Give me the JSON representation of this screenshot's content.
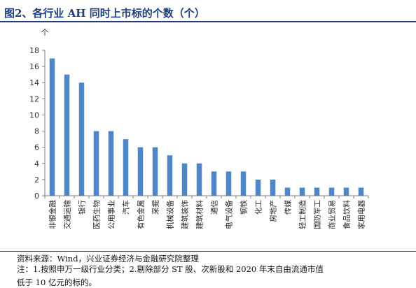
{
  "title": "图2、各行业 AH 同时上市标的个数（个）",
  "source_note": "资料来源：Wind，兴业证券经济与金融研究院整理",
  "note_line1": "注：1.按照申万一级行业分类；2.剔除部分 ST 股、次新股和 2020 年末自由流通市值",
  "note_line2": "低于 10 亿元的标的。",
  "colors": {
    "bar": "#4f86c6",
    "axis": "#7f7f7f",
    "title": "#1f3f7a",
    "rule": "#1f3f7a"
  },
  "chart_data": {
    "type": "bar",
    "unit_label": "个",
    "categories": [
      "非银金融",
      "交通运输",
      "银行",
      "医药生物",
      "公用事业",
      "汽车",
      "有色金属",
      "采掘",
      "机械设备",
      "建筑装饰",
      "建筑材料",
      "通信",
      "电气设备",
      "钢铁",
      "化工",
      "房地产",
      "传媒",
      "轻工制造",
      "国防军工",
      "商业贸易",
      "食品饮料",
      "家用电器"
    ],
    "values": [
      17,
      15,
      14,
      8,
      8,
      7,
      6,
      6,
      5,
      4,
      4,
      3,
      3,
      3,
      2,
      2,
      1,
      1,
      1,
      1,
      1,
      1
    ],
    "ylim": [
      0,
      18
    ],
    "yticks": [
      0,
      2,
      4,
      6,
      8,
      10,
      12,
      14,
      16,
      18
    ],
    "grid": false,
    "legend": "none"
  }
}
